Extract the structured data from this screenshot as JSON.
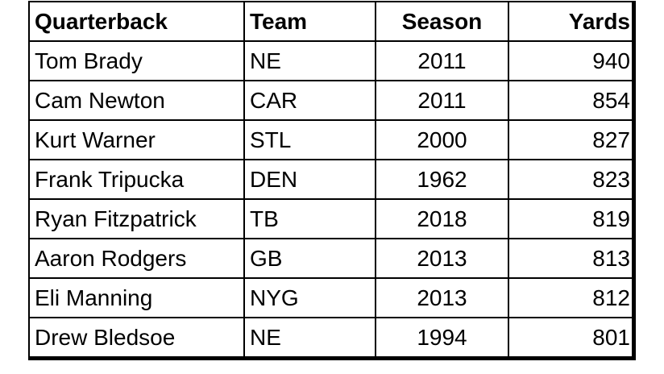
{
  "table": {
    "header": [
      "Quarterback",
      "Team",
      "Season",
      "Yards"
    ],
    "rows": [
      [
        "Tom Brady",
        "NE",
        2011,
        940
      ],
      [
        "Cam Newton",
        "CAR",
        2011,
        854
      ],
      [
        "Kurt Warner",
        "STL",
        2000,
        827
      ],
      [
        "Frank Tripucka",
        "DEN",
        1962,
        823
      ],
      [
        "Ryan Fitzpatrick",
        "TB",
        2018,
        819
      ],
      [
        "Aaron Rodgers",
        "GB",
        2013,
        813
      ],
      [
        "Eli Manning",
        "NYG",
        2013,
        812
      ],
      [
        "Drew Bledsoe",
        "NE",
        1994,
        801
      ]
    ]
  }
}
